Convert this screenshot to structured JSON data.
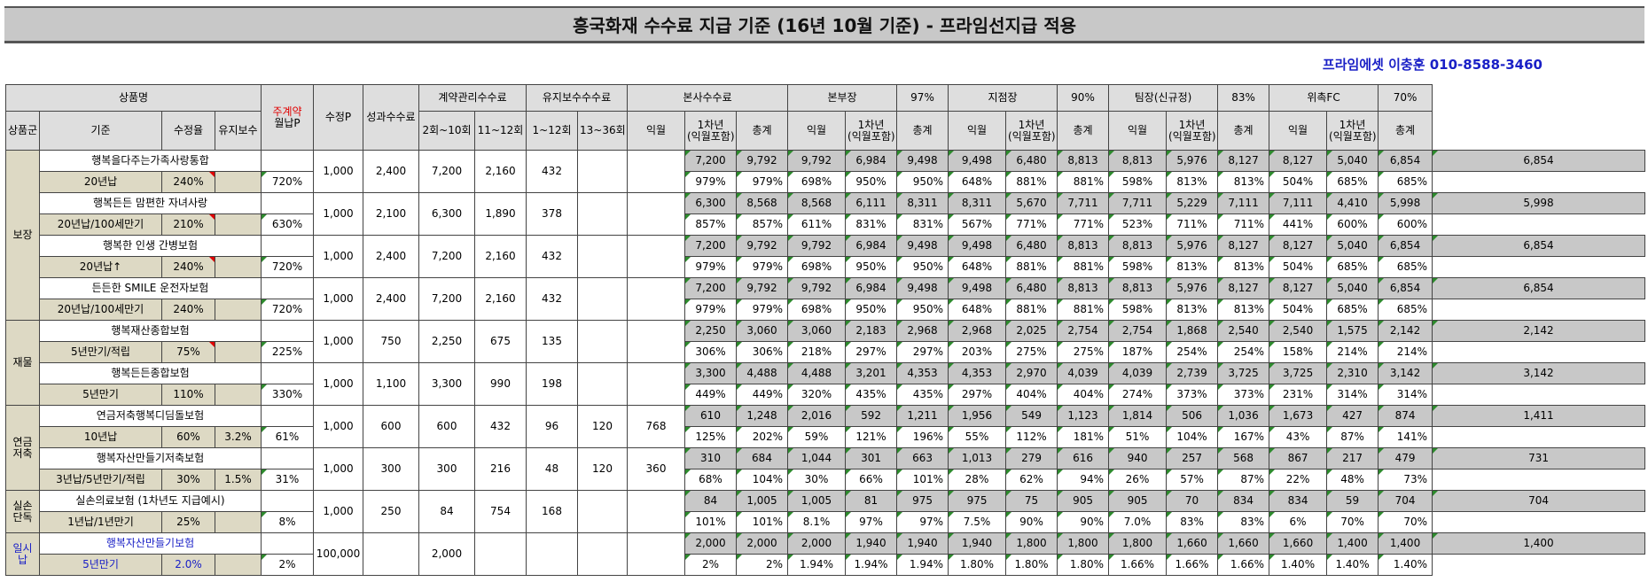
{
  "title": "흥국화재 수수료 지급 기준 (16년 10월 기준) - 프라임선지급 적용",
  "author": "프라임에셋 이충훈 010-8588-3460",
  "headers": {
    "product_name": "상품명",
    "main_contract": "주계약",
    "monthly_premium": "월납P",
    "modified_p": "수정P",
    "performance_fee": "성과수수료",
    "contract_mgmt_fee": "계약관리수수료",
    "maintenance_fee": "유지보수수수료",
    "hq_fee": "본사수수료",
    "division_head": "본부장",
    "division_rate": "97%",
    "branch_head": "지점장",
    "branch_rate": "90%",
    "team_leader": "팀장(신규정)",
    "team_rate": "83%",
    "fc": "위촉FC",
    "fc_rate": "70%",
    "product_group": "상품군",
    "criteria": "기준",
    "modified_rate": "수정율",
    "maintenance": "유지보수",
    "r2_10": "2회~10회",
    "r11_12": "11~12회",
    "r1_12": "1~12회",
    "r13_36": "13~36회",
    "next_month": "익월",
    "first_year": "1차년",
    "first_year_sub": "(익월포함)",
    "total": "총계"
  },
  "groups": [
    {
      "name": "보장",
      "span": 8
    },
    {
      "name": "재물",
      "span": 4
    },
    {
      "name": "연금\n저축",
      "span": 4
    },
    {
      "name": "실손\n단독",
      "span": 2
    },
    {
      "name": "일시납",
      "span": 2
    }
  ],
  "products": [
    {
      "name": "행복을다주는가족사랑통합",
      "criteria": "20년납",
      "rate": "240%",
      "maint": "",
      "mark": true,
      "monthly": "1,000",
      "modp": "2,400",
      "perf": "7,200",
      "cm1": "2,160",
      "cm2": "432",
      "mt1": "",
      "mt2": "",
      "v": [
        "7,200",
        "9,792",
        "9,792",
        "6,984",
        "9,498",
        "9,498",
        "6,480",
        "8,813",
        "8,813",
        "5,976",
        "8,127",
        "8,127",
        "5,040",
        "6,854",
        "6,854"
      ],
      "p": [
        "720%",
        "979%",
        "979%",
        "698%",
        "950%",
        "950%",
        "648%",
        "881%",
        "881%",
        "598%",
        "813%",
        "813%",
        "504%",
        "685%",
        "685%"
      ]
    },
    {
      "name": "행복든든 맘편한 자녀사랑",
      "criteria": "20년납/100세만기",
      "rate": "210%",
      "maint": "",
      "mark": true,
      "monthly": "1,000",
      "modp": "2,100",
      "perf": "6,300",
      "cm1": "1,890",
      "cm2": "378",
      "mt1": "",
      "mt2": "",
      "v": [
        "6,300",
        "8,568",
        "8,568",
        "6,111",
        "8,311",
        "8,311",
        "5,670",
        "7,711",
        "7,711",
        "5,229",
        "7,111",
        "7,111",
        "4,410",
        "5,998",
        "5,998"
      ],
      "p": [
        "630%",
        "857%",
        "857%",
        "611%",
        "831%",
        "831%",
        "567%",
        "771%",
        "771%",
        "523%",
        "711%",
        "711%",
        "441%",
        "600%",
        "600%"
      ]
    },
    {
      "name": "행복한 인생 간병보험",
      "criteria": "20년납↑",
      "rate": "240%",
      "maint": "",
      "mark": true,
      "monthly": "1,000",
      "modp": "2,400",
      "perf": "7,200",
      "cm1": "2,160",
      "cm2": "432",
      "mt1": "",
      "mt2": "",
      "v": [
        "7,200",
        "9,792",
        "9,792",
        "6,984",
        "9,498",
        "9,498",
        "6,480",
        "8,813",
        "8,813",
        "5,976",
        "8,127",
        "8,127",
        "5,040",
        "6,854",
        "6,854"
      ],
      "p": [
        "720%",
        "979%",
        "979%",
        "698%",
        "950%",
        "950%",
        "648%",
        "881%",
        "881%",
        "598%",
        "813%",
        "813%",
        "504%",
        "685%",
        "685%"
      ]
    },
    {
      "name": "든든한 SMILE 운전자보험",
      "criteria": "20년납/100세만기",
      "rate": "240%",
      "maint": "",
      "mark": false,
      "monthly": "1,000",
      "modp": "2,400",
      "perf": "7,200",
      "cm1": "2,160",
      "cm2": "432",
      "mt1": "",
      "mt2": "",
      "v": [
        "7,200",
        "9,792",
        "9,792",
        "6,984",
        "9,498",
        "9,498",
        "6,480",
        "8,813",
        "8,813",
        "5,976",
        "8,127",
        "8,127",
        "5,040",
        "6,854",
        "6,854"
      ],
      "p": [
        "720%",
        "979%",
        "979%",
        "698%",
        "950%",
        "950%",
        "648%",
        "881%",
        "881%",
        "598%",
        "813%",
        "813%",
        "504%",
        "685%",
        "685%"
      ]
    },
    {
      "name": "행복재산종합보험",
      "criteria": "5년만기/적립",
      "rate": "75%",
      "maint": "",
      "mark": true,
      "monthly": "1,000",
      "modp": "750",
      "perf": "2,250",
      "cm1": "675",
      "cm2": "135",
      "mt1": "",
      "mt2": "",
      "v": [
        "2,250",
        "3,060",
        "3,060",
        "2,183",
        "2,968",
        "2,968",
        "2,025",
        "2,754",
        "2,754",
        "1,868",
        "2,540",
        "2,540",
        "1,575",
        "2,142",
        "2,142"
      ],
      "p": [
        "225%",
        "306%",
        "306%",
        "218%",
        "297%",
        "297%",
        "203%",
        "275%",
        "275%",
        "187%",
        "254%",
        "254%",
        "158%",
        "214%",
        "214%"
      ]
    },
    {
      "name": "행복든든종합보험",
      "criteria": "5년만기",
      "rate": "110%",
      "maint": "",
      "mark": false,
      "monthly": "1,000",
      "modp": "1,100",
      "perf": "3,300",
      "cm1": "990",
      "cm2": "198",
      "mt1": "",
      "mt2": "",
      "v": [
        "3,300",
        "4,488",
        "4,488",
        "3,201",
        "4,353",
        "4,353",
        "2,970",
        "4,039",
        "4,039",
        "2,739",
        "3,725",
        "3,725",
        "2,310",
        "3,142",
        "3,142"
      ],
      "p": [
        "330%",
        "449%",
        "449%",
        "320%",
        "435%",
        "435%",
        "297%",
        "404%",
        "404%",
        "274%",
        "373%",
        "373%",
        "231%",
        "314%",
        "314%"
      ]
    },
    {
      "name": "연금저축행복디딤돌보험",
      "criteria": "10년납",
      "rate": "60%",
      "maint": "3.2%",
      "mark": false,
      "monthly": "1,000",
      "modp": "600",
      "perf": "600",
      "cm1": "432",
      "cm2": "96",
      "mt1": "120",
      "mt2": "768",
      "v": [
        "610",
        "1,248",
        "2,016",
        "592",
        "1,211",
        "1,956",
        "549",
        "1,123",
        "1,814",
        "506",
        "1,036",
        "1,673",
        "427",
        "874",
        "1,411"
      ],
      "p": [
        "61%",
        "125%",
        "202%",
        "59%",
        "121%",
        "196%",
        "55%",
        "112%",
        "181%",
        "51%",
        "104%",
        "167%",
        "43%",
        "87%",
        "141%"
      ]
    },
    {
      "name": "행복자산만들기저축보험",
      "criteria": "3년납/5년만기/적립",
      "rate": "30%",
      "maint": "1.5%",
      "mark": false,
      "monthly": "1,000",
      "modp": "300",
      "perf": "300",
      "cm1": "216",
      "cm2": "48",
      "mt1": "120",
      "mt2": "360",
      "v": [
        "310",
        "684",
        "1,044",
        "301",
        "663",
        "1,013",
        "279",
        "616",
        "940",
        "257",
        "568",
        "867",
        "217",
        "479",
        "731"
      ],
      "p": [
        "31%",
        "68%",
        "104%",
        "30%",
        "66%",
        "101%",
        "28%",
        "62%",
        "94%",
        "26%",
        "57%",
        "87%",
        "22%",
        "48%",
        "73%"
      ]
    },
    {
      "name": "실손의료보험 (1차년도 지급예시)",
      "criteria": "1년납/1년만기",
      "rate": "25%",
      "maint": "",
      "mark": false,
      "monthly": "1,000",
      "modp": "250",
      "perf": "84",
      "cm1": "754",
      "cm2": "168",
      "mt1": "",
      "mt2": "",
      "v": [
        "84",
        "1,005",
        "1,005",
        "81",
        "975",
        "975",
        "75",
        "905",
        "905",
        "70",
        "834",
        "834",
        "59",
        "704",
        "704"
      ],
      "p": [
        "8%",
        "101%",
        "101%",
        "8.1%",
        "97%",
        "97%",
        "7.5%",
        "90%",
        "90%",
        "7.0%",
        "83%",
        "83%",
        "6%",
        "70%",
        "70%"
      ]
    },
    {
      "name": "행복자산만들기보험",
      "criteria": "5년만기",
      "rate": "2.0%",
      "maint": "",
      "mark": false,
      "blue": true,
      "monthly": "100,000",
      "modp": "",
      "perf": "2,000",
      "cm1": "",
      "cm2": "",
      "mt1": "",
      "mt2": "",
      "v": [
        "2,000",
        "2,000",
        "2,000",
        "1,940",
        "1,940",
        "1,940",
        "1,800",
        "1,800",
        "1,800",
        "1,660",
        "1,660",
        "1,660",
        "1,400",
        "1,400",
        "1,400"
      ],
      "p": [
        "2%",
        "2%",
        "2%",
        "1.94%",
        "1.94%",
        "1.94%",
        "1.80%",
        "1.80%",
        "1.80%",
        "1.66%",
        "1.66%",
        "1.66%",
        "1.40%",
        "1.40%",
        "1.40%"
      ]
    }
  ]
}
